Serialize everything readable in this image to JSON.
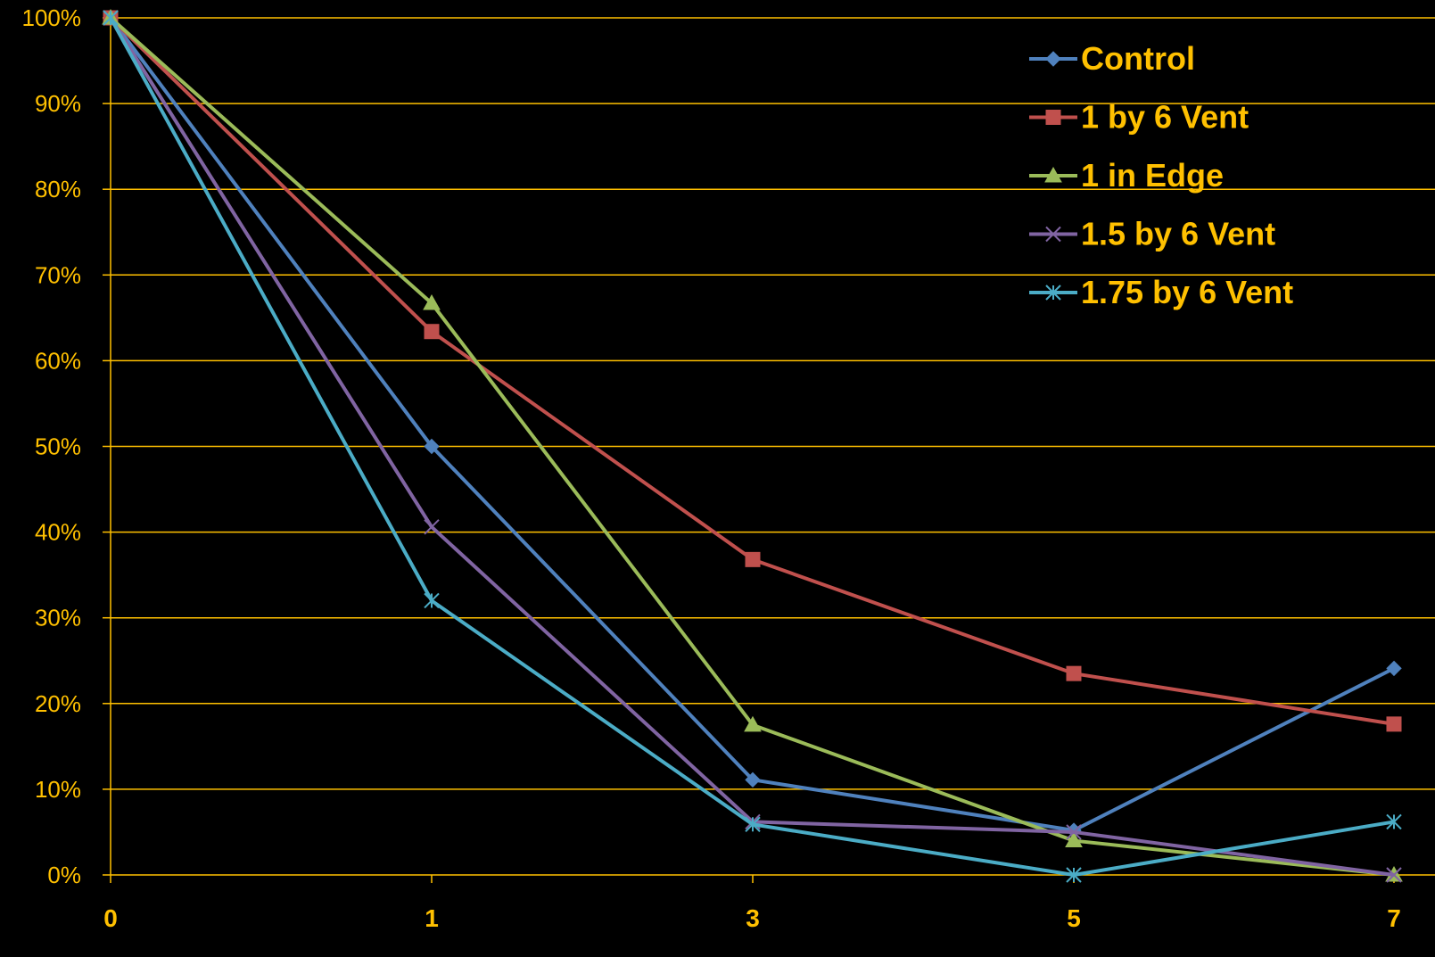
{
  "chart_data": {
    "type": "line",
    "title": "",
    "xlabel": "",
    "ylabel": "",
    "categories": [
      "0",
      "1",
      "3",
      "5",
      "7"
    ],
    "y_ticks": [
      "0%",
      "10%",
      "20%",
      "30%",
      "40%",
      "50%",
      "60%",
      "70%",
      "80%",
      "90%",
      "100%"
    ],
    "ylim": [
      0,
      100
    ],
    "y_unit": "percent",
    "grid": true,
    "legend_position": "top-right",
    "colors": {
      "background": "#000000",
      "axis_text": "#FFC000",
      "gridline": "#FFC000"
    },
    "series": [
      {
        "name": "Control",
        "color": "#4F81BD",
        "marker": "diamond",
        "values": [
          100,
          50,
          11.1,
          5.2,
          24.1
        ]
      },
      {
        "name": "1 by 6 Vent",
        "color": "#C0504D",
        "marker": "square",
        "values": [
          100,
          63.4,
          36.8,
          23.5,
          17.6
        ]
      },
      {
        "name": "1 in Edge",
        "color": "#9BBB59",
        "marker": "triangle",
        "values": [
          100,
          66.7,
          17.5,
          4.0,
          0
        ]
      },
      {
        "name": "1.5 by 6 Vent",
        "color": "#8064A2",
        "marker": "x",
        "values": [
          100,
          40.6,
          6.2,
          5.0,
          0
        ]
      },
      {
        "name": "1.75 by 6 Vent",
        "color": "#4BACC6",
        "marker": "star",
        "values": [
          100,
          32.0,
          5.9,
          0,
          6.2
        ]
      }
    ]
  }
}
